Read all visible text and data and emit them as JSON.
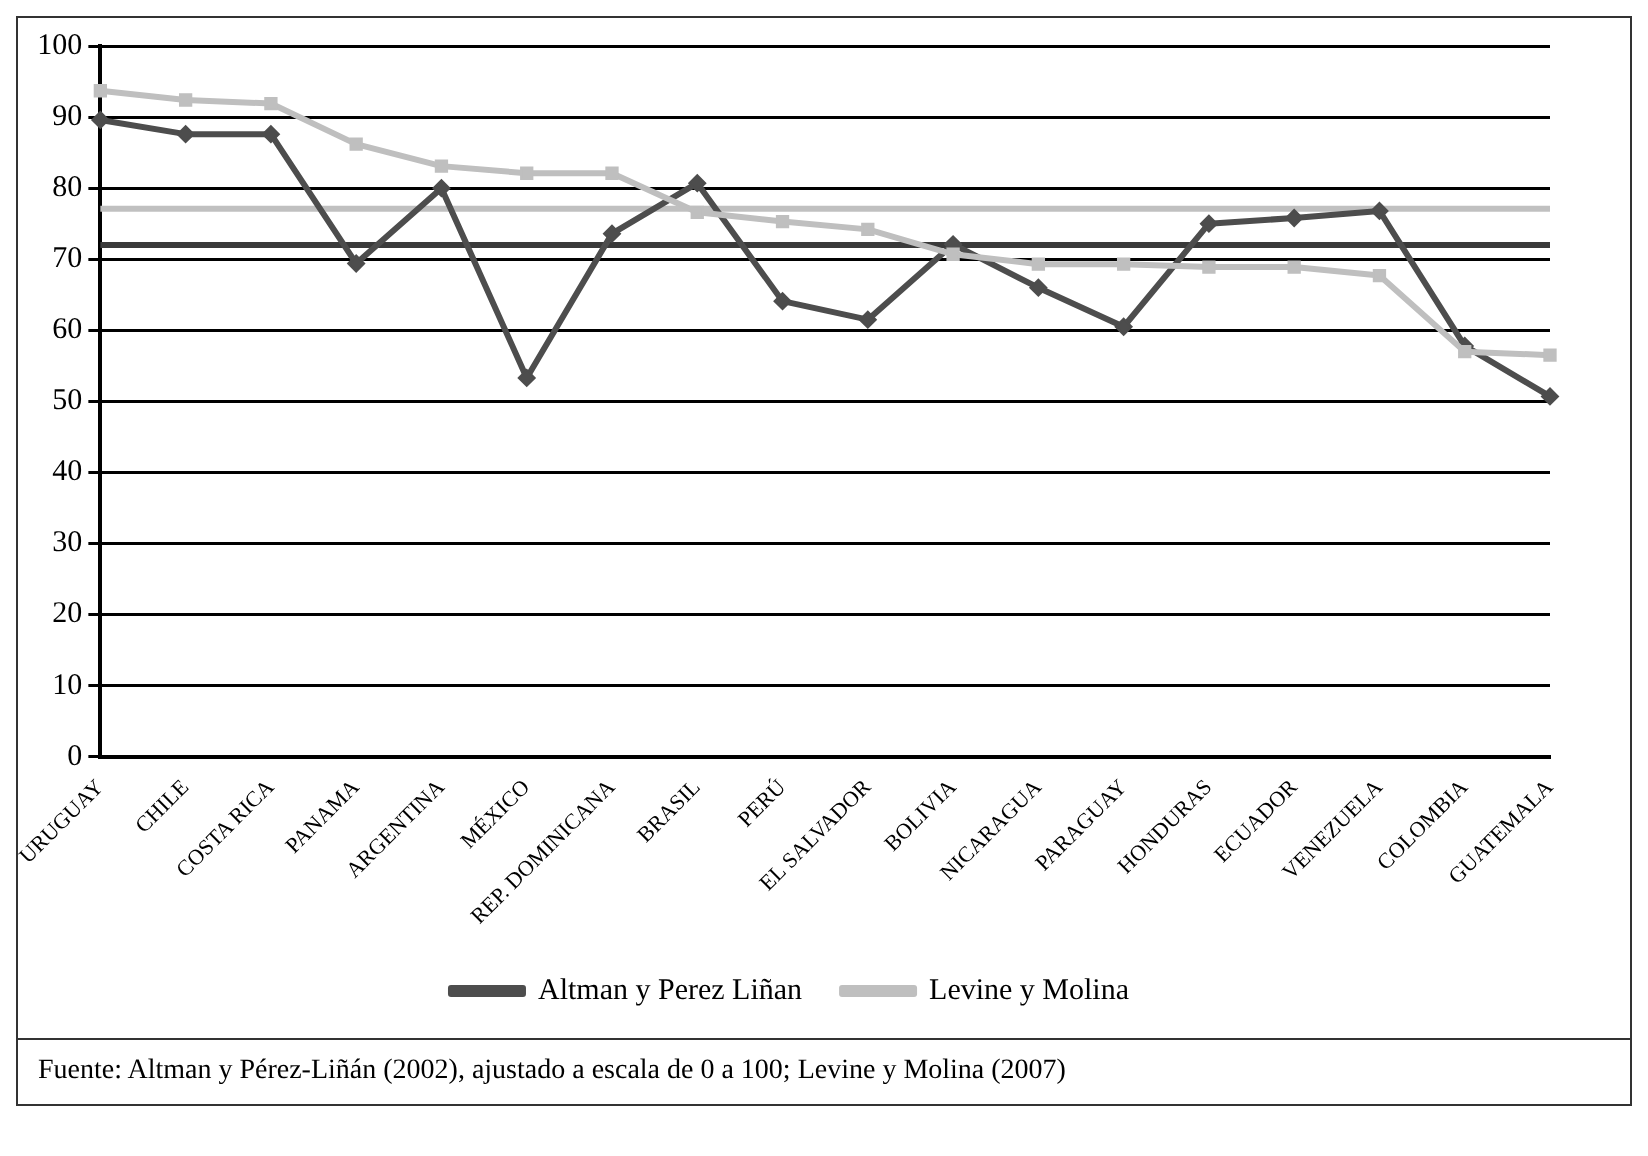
{
  "chart_data": {
    "type": "line",
    "categories": [
      "URUGUAY",
      "CHILE",
      "COSTA RICA",
      "PANAMA",
      "ARGENTINA",
      "MÉXICO",
      "REP. DOMINICANA",
      "BRASIL",
      "PERÚ",
      "EL SALVADOR",
      "BOLIVIA",
      "NICARAGUA",
      "PARAGUAY",
      "HONDURAS",
      "ECUADOR",
      "VENEZUELA",
      "COLOMBIA",
      "GUATEMALA"
    ],
    "series": [
      {
        "name": "Altman y Perez Liñan",
        "color": "#4d4d4d",
        "marker": "diamond",
        "values": [
          89.6,
          87.6,
          87.6,
          69.4,
          80.0,
          53.3,
          73.6,
          80.7,
          64.1,
          61.5,
          72.1,
          66.0,
          60.5,
          75.0,
          75.8,
          76.8,
          57.8,
          50.7
        ]
      },
      {
        "name": "Levine y Molina",
        "color": "#bfbfbf",
        "marker": "square",
        "values": [
          93.7,
          92.4,
          91.9,
          86.2,
          83.1,
          82.1,
          82.1,
          76.6,
          75.3,
          74.2,
          70.7,
          69.3,
          69.3,
          68.9,
          68.9,
          67.7,
          57.0,
          56.5
        ]
      }
    ],
    "ylim": [
      0,
      100
    ],
    "yticks": [
      0,
      10,
      20,
      30,
      40,
      50,
      60,
      70,
      80,
      90,
      100
    ],
    "grid": "y",
    "legend": "bottom",
    "line_style": "solid",
    "ref_lines": [
      {
        "axis": "y",
        "value": 72,
        "color": "#3a3a3a"
      },
      {
        "axis": "y",
        "value": 77.1,
        "color": "#c0c0c0"
      }
    ],
    "annotations": [
      "Fuente: Altman y Pérez-Liñán (2002), ajustado a escala de 0 a 100; Levine y Molina (2007)"
    ]
  }
}
